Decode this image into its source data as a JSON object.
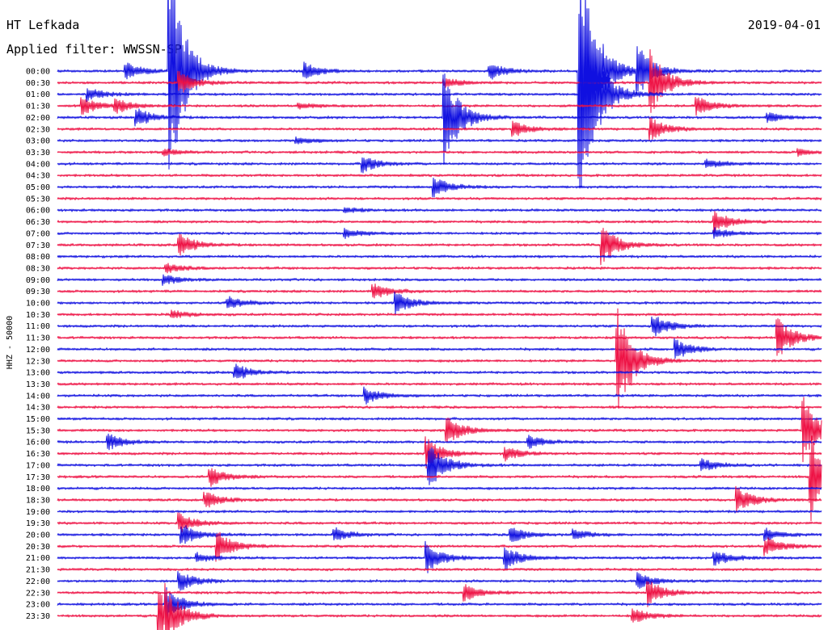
{
  "header": {
    "station": "HT Lefkada",
    "date": "2019-04-01",
    "filter": "Applied filter: WWSSN-SP"
  },
  "colors": {
    "even_trace": "#1010e0",
    "odd_trace": "#ee1144",
    "background": "#ffffff",
    "text": "#000000"
  },
  "chart_data": {
    "type": "line",
    "title": "HT Lefkada",
    "ylabel": "HHZ - 50000",
    "xlabel": "",
    "grid": false,
    "legend": "none",
    "row_labels": [
      "00:00",
      "00:30",
      "01:00",
      "01:30",
      "02:00",
      "02:30",
      "03:00",
      "03:30",
      "04:00",
      "04:30",
      "05:00",
      "05:30",
      "06:00",
      "06:30",
      "07:00",
      "07:30",
      "08:00",
      "08:30",
      "09:00",
      "09:30",
      "10:00",
      "10:30",
      "11:00",
      "11:30",
      "12:00",
      "12:30",
      "13:00",
      "13:30",
      "14:00",
      "14:30",
      "15:00",
      "15:30",
      "16:00",
      "16:30",
      "17:00",
      "17:30",
      "18:00",
      "18:30",
      "19:00",
      "19:30",
      "20:00",
      "20:30",
      "21:00",
      "21:30",
      "22:00",
      "22:30",
      "23:00",
      "23:30"
    ],
    "row_duration_minutes": 30,
    "events": [
      {
        "row": 0,
        "minute": 2.7,
        "amp": 10
      },
      {
        "row": 0,
        "minute": 9.7,
        "amp": 10
      },
      {
        "row": 0,
        "minute": 17.0,
        "amp": 10
      },
      {
        "row": 0,
        "minute": 21.3,
        "amp": 8
      },
      {
        "row": 0,
        "minute": 4.4,
        "amp": 150
      },
      {
        "row": 0,
        "minute": 20.5,
        "amp": 150
      },
      {
        "row": 0,
        "minute": 22.8,
        "amp": 30
      },
      {
        "row": 1,
        "minute": 4.8,
        "amp": 14
      },
      {
        "row": 1,
        "minute": 15.2,
        "amp": 6
      },
      {
        "row": 1,
        "minute": 23.3,
        "amp": 40
      },
      {
        "row": 2,
        "minute": 1.2,
        "amp": 8
      },
      {
        "row": 2,
        "minute": 20.6,
        "amp": 140
      },
      {
        "row": 3,
        "minute": 1.0,
        "amp": 10
      },
      {
        "row": 3,
        "minute": 2.3,
        "amp": 8
      },
      {
        "row": 3,
        "minute": 9.5,
        "amp": 4
      },
      {
        "row": 3,
        "minute": 25.1,
        "amp": 12
      },
      {
        "row": 4,
        "minute": 3.1,
        "amp": 12
      },
      {
        "row": 4,
        "minute": 15.2,
        "amp": 60
      },
      {
        "row": 4,
        "minute": 27.9,
        "amp": 6
      },
      {
        "row": 5,
        "minute": 17.9,
        "amp": 10
      },
      {
        "row": 5,
        "minute": 23.3,
        "amp": 14
      },
      {
        "row": 6,
        "minute": 9.4,
        "amp": 4
      },
      {
        "row": 7,
        "minute": 4.2,
        "amp": 4
      },
      {
        "row": 7,
        "minute": 29.1,
        "amp": 4
      },
      {
        "row": 8,
        "minute": 12.0,
        "amp": 10
      },
      {
        "row": 8,
        "minute": 25.5,
        "amp": 6
      },
      {
        "row": 10,
        "minute": 14.8,
        "amp": 12
      },
      {
        "row": 12,
        "minute": 11.3,
        "amp": 3
      },
      {
        "row": 13,
        "minute": 25.8,
        "amp": 14
      },
      {
        "row": 14,
        "minute": 11.3,
        "amp": 6
      },
      {
        "row": 14,
        "minute": 25.8,
        "amp": 6
      },
      {
        "row": 15,
        "minute": 4.8,
        "amp": 14
      },
      {
        "row": 15,
        "minute": 21.4,
        "amp": 24
      },
      {
        "row": 17,
        "minute": 4.3,
        "amp": 6
      },
      {
        "row": 18,
        "minute": 4.2,
        "amp": 6
      },
      {
        "row": 19,
        "minute": 12.4,
        "amp": 10
      },
      {
        "row": 20,
        "minute": 6.7,
        "amp": 8
      },
      {
        "row": 20,
        "minute": 13.3,
        "amp": 14
      },
      {
        "row": 21,
        "minute": 4.5,
        "amp": 5
      },
      {
        "row": 22,
        "minute": 23.4,
        "amp": 14
      },
      {
        "row": 23,
        "minute": 28.3,
        "amp": 24
      },
      {
        "row": 24,
        "minute": 24.3,
        "amp": 12
      },
      {
        "row": 25,
        "minute": 22.0,
        "amp": 70
      },
      {
        "row": 26,
        "minute": 7.0,
        "amp": 10
      },
      {
        "row": 28,
        "minute": 12.1,
        "amp": 10
      },
      {
        "row": 31,
        "minute": 15.3,
        "amp": 18
      },
      {
        "row": 31,
        "minute": 29.3,
        "amp": 40
      },
      {
        "row": 32,
        "minute": 2.0,
        "amp": 10
      },
      {
        "row": 32,
        "minute": 18.5,
        "amp": 8
      },
      {
        "row": 33,
        "minute": 14.5,
        "amp": 20
      },
      {
        "row": 33,
        "minute": 17.6,
        "amp": 8
      },
      {
        "row": 34,
        "minute": 14.6,
        "amp": 30
      },
      {
        "row": 34,
        "minute": 25.3,
        "amp": 8
      },
      {
        "row": 35,
        "minute": 6.0,
        "amp": 12
      },
      {
        "row": 35,
        "minute": 29.6,
        "amp": 60
      },
      {
        "row": 37,
        "minute": 5.8,
        "amp": 10
      },
      {
        "row": 37,
        "minute": 26.7,
        "amp": 16
      },
      {
        "row": 39,
        "minute": 4.8,
        "amp": 12
      },
      {
        "row": 40,
        "minute": 4.9,
        "amp": 14
      },
      {
        "row": 40,
        "minute": 10.9,
        "amp": 8
      },
      {
        "row": 40,
        "minute": 17.8,
        "amp": 10
      },
      {
        "row": 40,
        "minute": 20.3,
        "amp": 6
      },
      {
        "row": 40,
        "minute": 27.8,
        "amp": 8
      },
      {
        "row": 41,
        "minute": 6.3,
        "amp": 18
      },
      {
        "row": 41,
        "minute": 27.8,
        "amp": 12
      },
      {
        "row": 42,
        "minute": 5.5,
        "amp": 6
      },
      {
        "row": 42,
        "minute": 14.5,
        "amp": 20
      },
      {
        "row": 42,
        "minute": 17.6,
        "amp": 14
      },
      {
        "row": 42,
        "minute": 25.8,
        "amp": 10
      },
      {
        "row": 44,
        "minute": 4.8,
        "amp": 12
      },
      {
        "row": 44,
        "minute": 22.8,
        "amp": 10
      },
      {
        "row": 45,
        "minute": 16.0,
        "amp": 10
      },
      {
        "row": 45,
        "minute": 23.2,
        "amp": 16
      },
      {
        "row": 46,
        "minute": 4.3,
        "amp": 20
      },
      {
        "row": 47,
        "minute": 4.0,
        "amp": 30
      },
      {
        "row": 47,
        "minute": 4.3,
        "amp": 20
      },
      {
        "row": 47,
        "minute": 22.6,
        "amp": 10
      }
    ]
  }
}
